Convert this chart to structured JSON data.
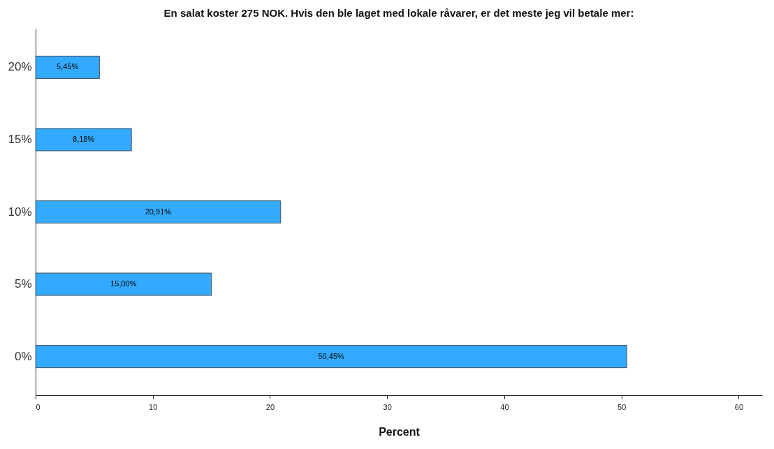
{
  "chart_data": {
    "type": "bar",
    "orientation": "horizontal",
    "title": "En salat koster 275 NOK. Hvis den ble laget med lokale råvarer, er det meste jeg vil betale mer:",
    "xlabel": "Percent",
    "categories": [
      "20%",
      "15%",
      "10%",
      "5%",
      "0%"
    ],
    "values": [
      5.45,
      8.18,
      20.91,
      15.0,
      50.45
    ],
    "value_labels": [
      "5,45%",
      "8,18%",
      "20,91%",
      "15,00%",
      "50,45%"
    ],
    "color": "#33aaff",
    "xlim": [
      0,
      62
    ],
    "xticks": [
      0,
      10,
      20,
      30,
      40,
      50,
      60
    ],
    "grid": false
  }
}
